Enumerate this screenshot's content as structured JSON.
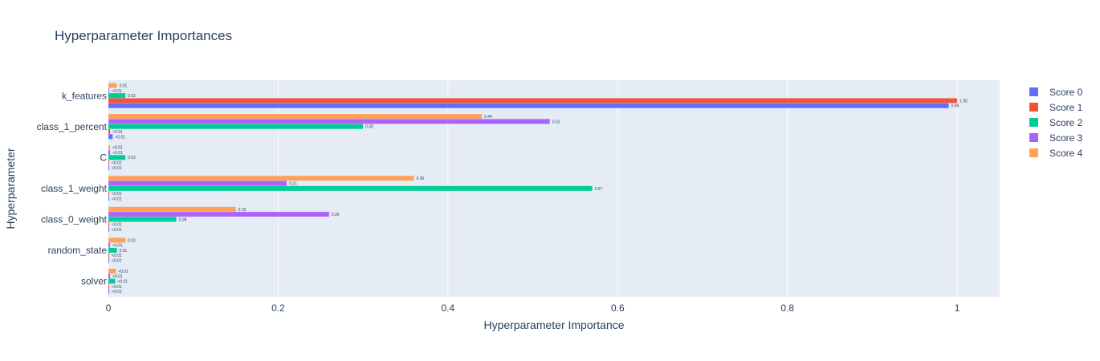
{
  "chart_data": {
    "type": "bar",
    "orientation": "horizontal",
    "title": "Hyperparameter Importances",
    "xlabel": "Hyperparameter Importance",
    "ylabel": "Hyperparameter",
    "xlim": [
      0,
      1.05
    ],
    "xticks": [
      0,
      0.2,
      0.4,
      0.6,
      0.8,
      1
    ],
    "xtick_labels": [
      "0",
      "0.2",
      "0.4",
      "0.6",
      "0.8",
      "1"
    ],
    "grid": true,
    "legend_position": "top-right",
    "categories": [
      "k_features",
      "class_1_percent",
      "C",
      "class_1_weight",
      "class_0_weight",
      "random_state",
      "solver"
    ],
    "series": [
      {
        "name": "Score 0",
        "color": "#636efa",
        "values": [
          0.99,
          0.005,
          0.001,
          0.001,
          0.001,
          0.001,
          0.001
        ],
        "labels": [
          "0.99",
          "<0.01",
          "<0.01",
          "<0.01",
          "<0.01",
          "<0.01",
          "<0.01"
        ]
      },
      {
        "name": "Score 1",
        "color": "#ef553b",
        "values": [
          1.0,
          0.002,
          0.001,
          0.001,
          0.001,
          0.001,
          0.001
        ],
        "labels": [
          "1.00",
          "<0.01",
          "<0.01",
          "<0.01",
          "<0.01",
          "<0.01",
          "<0.01"
        ]
      },
      {
        "name": "Score 2",
        "color": "#00cc96",
        "values": [
          0.02,
          0.3,
          0.02,
          0.57,
          0.08,
          0.01,
          0.008
        ],
        "labels": [
          "0.02",
          "0.30",
          "0.02",
          "0.57",
          "0.08",
          "0.01",
          "<0.01"
        ]
      },
      {
        "name": "Score 3",
        "color": "#ab63fa",
        "values": [
          0.001,
          0.52,
          0.002,
          0.21,
          0.26,
          0.002,
          0.002
        ],
        "labels": [
          "<0.01",
          "0.52",
          "<0.01",
          "0.21",
          "0.26",
          "<0.01",
          "<0.01"
        ]
      },
      {
        "name": "Score 4",
        "color": "#ffa15a",
        "values": [
          0.01,
          0.44,
          0.002,
          0.36,
          0.15,
          0.02,
          0.009
        ],
        "labels": [
          "0.01",
          "0.44",
          "<0.01",
          "0.36",
          "0.15",
          "0.02",
          "<0.01"
        ]
      }
    ]
  }
}
